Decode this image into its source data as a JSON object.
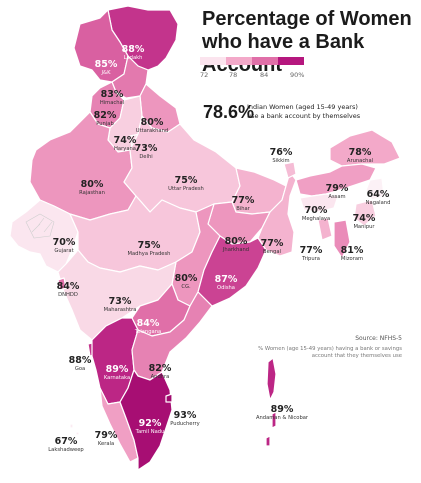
{
  "title": "Percentage of Women who have a Bank Account",
  "legend": {
    "ticks": [
      "72",
      "78",
      "84",
      "90%"
    ],
    "colors": [
      "#fbe4ee",
      "#f3a9c9",
      "#e06fa8",
      "#b5177e"
    ]
  },
  "headline": {
    "value": "78.6%",
    "description": "Indian Women (aged 15-49 years) use a bank account by themselves"
  },
  "source": "Source: NFHS-5",
  "note": "% Women (age 15-49 years) having a bank or savings account that they themselves use",
  "chart_data": {
    "type": "choropleth",
    "title": "Percentage of Women who have a Bank Account",
    "unit": "%",
    "regions": [
      {
        "name": "Ladakh",
        "value": 88
      },
      {
        "name": "J&K",
        "value": 85
      },
      {
        "name": "Himachal",
        "value": 83
      },
      {
        "name": "Punjab",
        "value": 82
      },
      {
        "name": "Uttarakhand",
        "value": 80
      },
      {
        "name": "Haryana",
        "value": 74
      },
      {
        "name": "Delhi",
        "value": 73
      },
      {
        "name": "Rajasthan",
        "value": 80
      },
      {
        "name": "Uttar Pradesh",
        "value": 75
      },
      {
        "name": "Sikkim",
        "value": 76
      },
      {
        "name": "Arunachal",
        "value": 78
      },
      {
        "name": "Assam",
        "value": 79
      },
      {
        "name": "Nagaland",
        "value": 64
      },
      {
        "name": "Bihar",
        "value": 77
      },
      {
        "name": "Meghalaya",
        "value": 70
      },
      {
        "name": "Manipur",
        "value": 74
      },
      {
        "name": "Gujarat",
        "value": 70
      },
      {
        "name": "Madhya Pradesh",
        "value": 75
      },
      {
        "name": "Jharkhand",
        "value": 80
      },
      {
        "name": "Bengal",
        "value": 77
      },
      {
        "name": "Tripura",
        "value": 77
      },
      {
        "name": "Mizoram",
        "value": 81
      },
      {
        "name": "DNHDD",
        "value": 84
      },
      {
        "name": "Maharashtra",
        "value": 73
      },
      {
        "name": "CG",
        "value": 80
      },
      {
        "name": "Odisha",
        "value": 87
      },
      {
        "name": "Telangana",
        "value": 84
      },
      {
        "name": "Goa",
        "value": 88
      },
      {
        "name": "Karnataka",
        "value": 89
      },
      {
        "name": "Andhra",
        "value": 82
      },
      {
        "name": "Tamil Nadu",
        "value": 92
      },
      {
        "name": "Puducherry",
        "value": 93
      },
      {
        "name": "Kerala",
        "value": 79
      },
      {
        "name": "Lakshadweep",
        "value": 67
      },
      {
        "name": "Andaman & Nicobar",
        "value": 89
      }
    ],
    "labels": [
      {
        "pct": "88%",
        "name": "Ladakh"
      },
      {
        "pct": "85%",
        "name": "J&K"
      },
      {
        "pct": "83%",
        "name": "Himachal"
      },
      {
        "pct": "82%",
        "name": "Punjab"
      },
      {
        "pct": "80%",
        "name": "Uttarakhand"
      },
      {
        "pct": "74%",
        "name": "Haryana"
      },
      {
        "pct": "73%",
        "name": "Delhi"
      },
      {
        "pct": "80%",
        "name": "Rajasthan"
      },
      {
        "pct": "75%",
        "name": "Uttar Pradesh"
      },
      {
        "pct": "76%",
        "name": "Sikkim"
      },
      {
        "pct": "78%",
        "name": "Arunachal"
      },
      {
        "pct": "79%",
        "name": "Assam"
      },
      {
        "pct": "64%",
        "name": "Nagaland"
      },
      {
        "pct": "77%",
        "name": "Bihar"
      },
      {
        "pct": "70%",
        "name": "Meghalaya"
      },
      {
        "pct": "74%",
        "name": "Manipur"
      },
      {
        "pct": "70%",
        "name": "Gujarat"
      },
      {
        "pct": "75%",
        "name": "Madhya Pradesh"
      },
      {
        "pct": "80%",
        "name": "Jharkhand"
      },
      {
        "pct": "77%",
        "name": "Bengal"
      },
      {
        "pct": "77%",
        "name": "Tripura"
      },
      {
        "pct": "81%",
        "name": "Mizoram"
      },
      {
        "pct": "84%",
        "name": "DNHDD"
      },
      {
        "pct": "73%",
        "name": "Maharashtra"
      },
      {
        "pct": "80%",
        "name": "CG."
      },
      {
        "pct": "87%",
        "name": "Odisha"
      },
      {
        "pct": "84%",
        "name": "Telangana"
      },
      {
        "pct": "88%",
        "name": "Goa"
      },
      {
        "pct": "89%",
        "name": "Karnataka"
      },
      {
        "pct": "82%",
        "name": "Andhra"
      },
      {
        "pct": "92%",
        "name": "Tamil Nadu"
      },
      {
        "pct": "93%",
        "name": "Puducherry"
      },
      {
        "pct": "79%",
        "name": "Kerala"
      },
      {
        "pct": "67%",
        "name": "Lakshadweep"
      },
      {
        "pct": "89%",
        "name": "Andaman & Nicobar"
      }
    ]
  }
}
